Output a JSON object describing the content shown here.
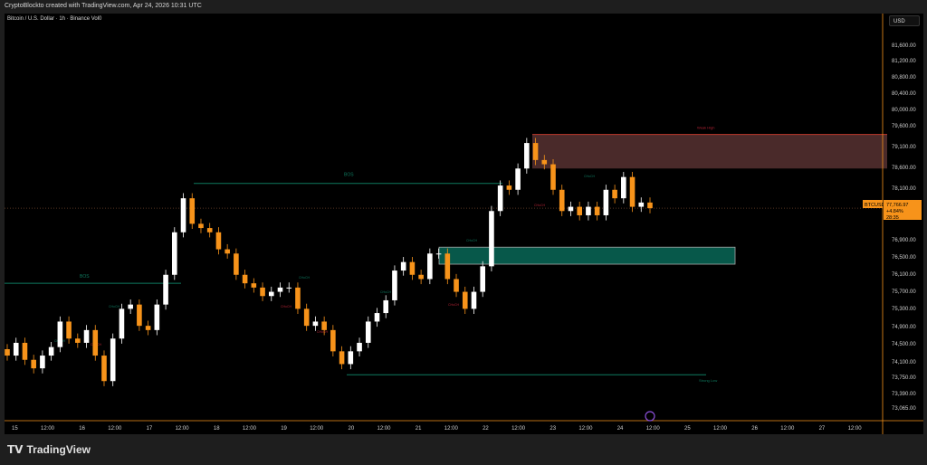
{
  "header": {
    "attribution": "CryptoBlockto created with TradingView.com, Apr 24, 2026 10:31 UTC"
  },
  "symbol_title": "Bitcoin / U.S. Dollar · 1h · Binance  Vol0",
  "currency_button": "USD",
  "footer": {
    "brand": "TradingView"
  },
  "colors": {
    "bull": "#ffffff",
    "bear": "#f7931a",
    "bos_line": "#0e7a5f",
    "choch_bear": "#b22234",
    "weak_high_zone": "#4a2a2a",
    "demand_zone": "#07584a",
    "background": "#000000"
  },
  "chart_data": {
    "type": "candlestick",
    "timeframe": "1h",
    "x_ticks": [
      "15",
      "12:00",
      "16",
      "12:00",
      "17",
      "12:00",
      "18",
      "12:00",
      "19",
      "12:00",
      "20",
      "12:00",
      "21",
      "12:00",
      "22",
      "12:00",
      "23",
      "12:00",
      "24",
      "12:00",
      "25",
      "12:00",
      "26",
      "12:00",
      "27",
      "12:00"
    ],
    "y_ticks": [
      "81,600.00",
      "81,200.00",
      "80,800.00",
      "80,400.00",
      "80,000.00",
      "79,600.00",
      "79,100.00",
      "78,600.00",
      "78,100.00",
      "76,900.00",
      "76,500.00",
      "76,100.00",
      "75,700.00",
      "75,300.00",
      "74,900.00",
      "74,500.00",
      "74,100.00",
      "73,750.00",
      "73,390.00",
      "73,065.00"
    ],
    "ylim": [
      73065,
      81600
    ],
    "closes": [
      74300,
      74600,
      74200,
      74000,
      74300,
      74500,
      75100,
      74700,
      74600,
      74900,
      74300,
      73700,
      74700,
      75400,
      75500,
      75000,
      74900,
      75500,
      76200,
      77200,
      78000,
      77400,
      77300,
      77200,
      76800,
      76700,
      76200,
      76000,
      75900,
      75700,
      75800,
      75900,
      75900,
      75400,
      75000,
      75100,
      74900,
      74400,
      74100,
      74400,
      74600,
      75100,
      75300,
      75600,
      76300,
      76500,
      76200,
      76100,
      76700,
      76700,
      76100,
      75800,
      75400,
      75800,
      76400,
      77700,
      78300,
      78200,
      78700,
      79300,
      78900,
      78800,
      78200,
      77700,
      77800,
      77600,
      77800,
      77600,
      78200,
      78000,
      78500,
      77800,
      77900,
      77766.97
    ],
    "last_price": {
      "symbol": "BTCUSD",
      "price": "77,766.97",
      "change": "+4.84%",
      "countdown": "28:35"
    },
    "annotations": {
      "bos": "BOS",
      "choch": "CHoCH",
      "weak_high": "Weak High",
      "strong_low": "Strong Low",
      "weak_high_zone": [
        78700,
        79500
      ],
      "demand_zone": [
        76450,
        76850
      ],
      "strong_low_level": 73850,
      "bos_levels": [
        76000,
        78350
      ]
    }
  }
}
